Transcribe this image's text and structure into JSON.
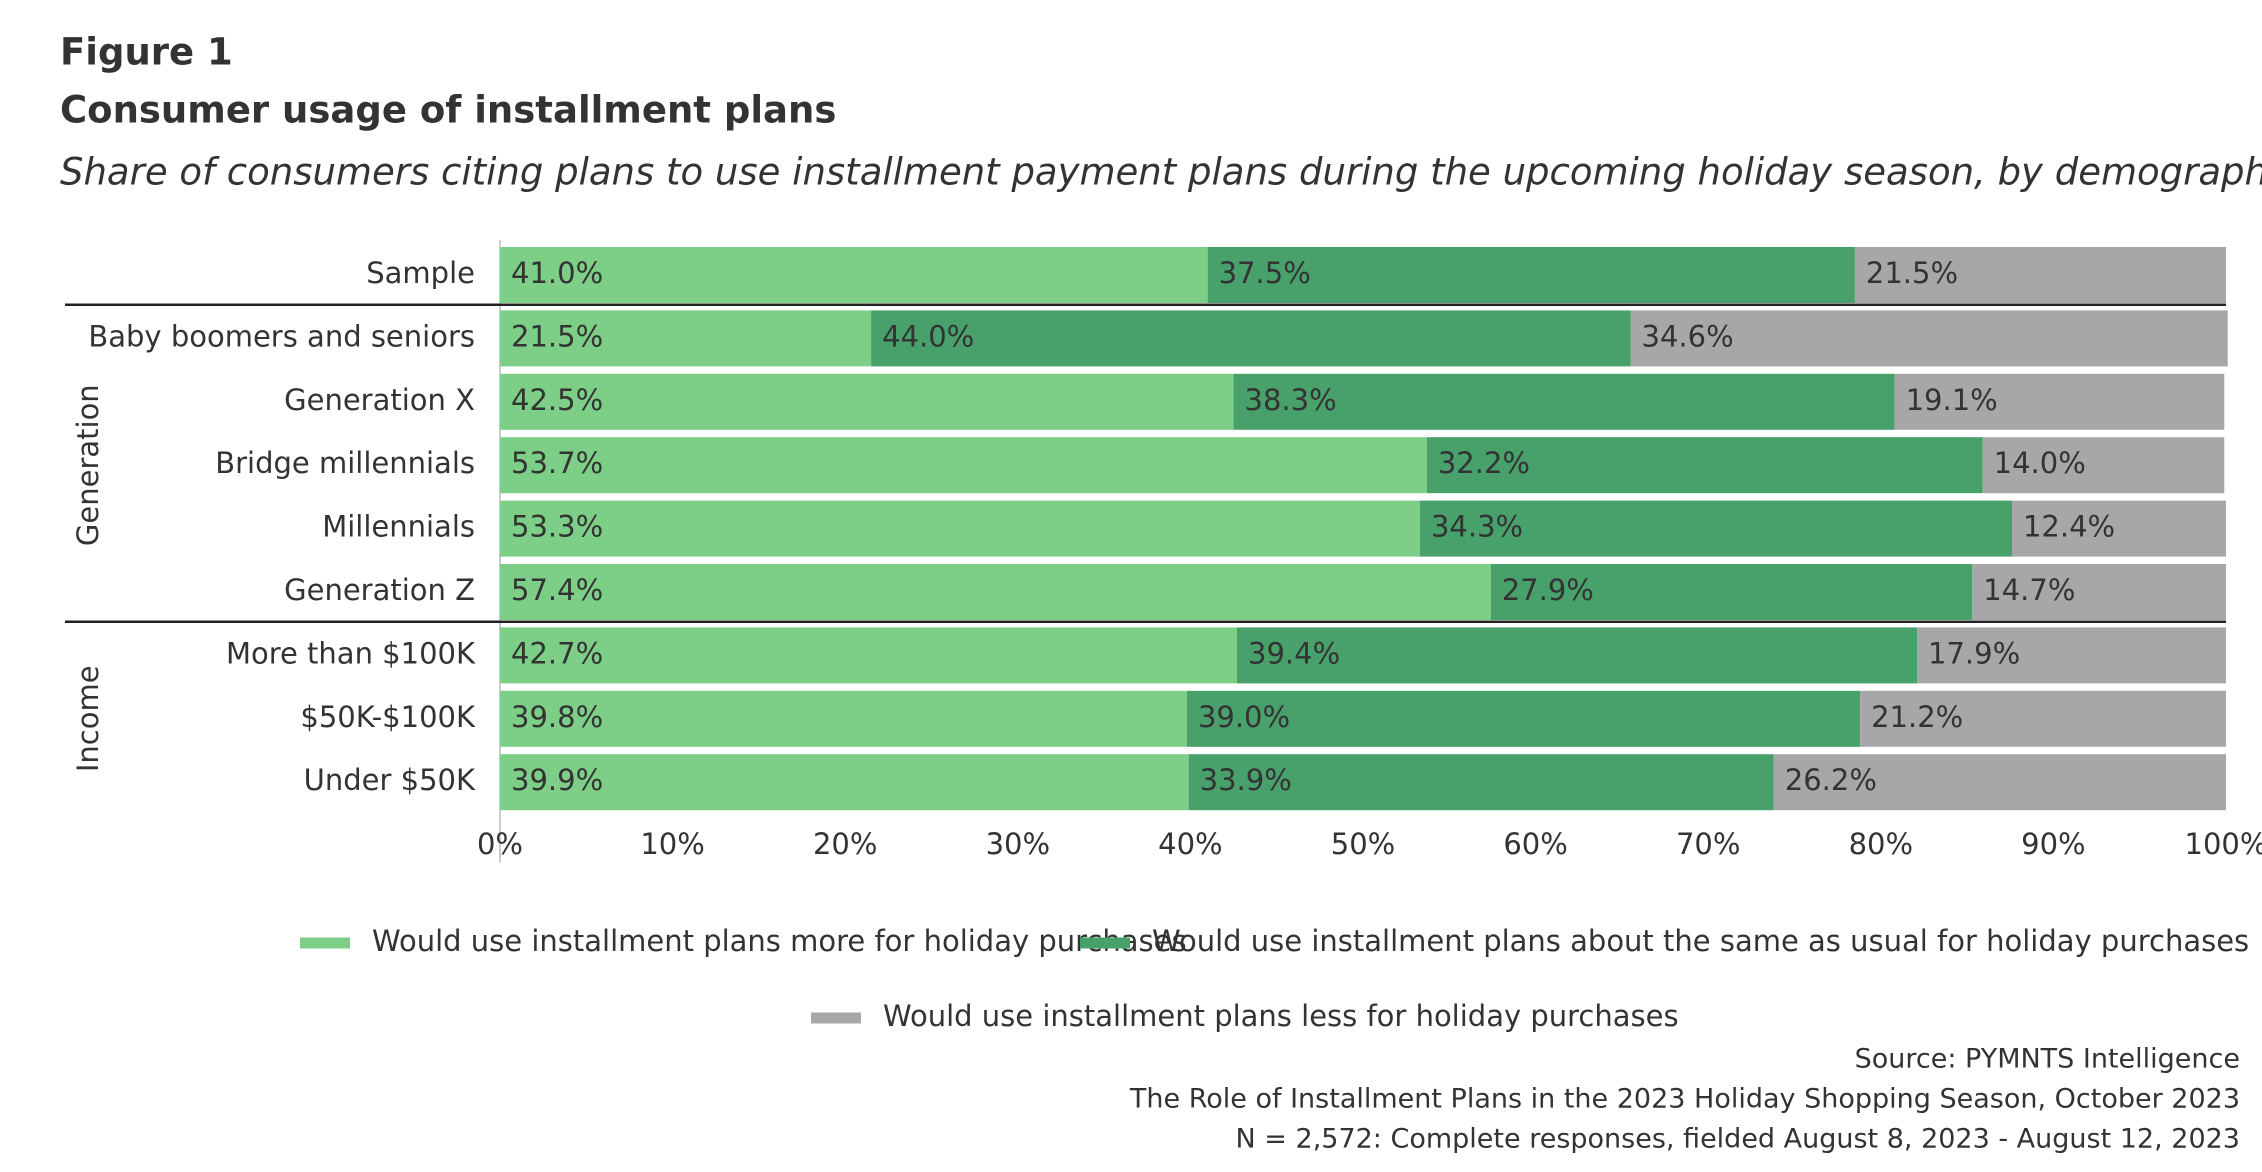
{
  "chart_data": {
    "type": "stacked-bar-horizontal",
    "figure_label": "Figure 1",
    "title": "Consumer usage of installment plans",
    "subtitle": "Share of consumers citing plans to use installment payment plans during the upcoming holiday season, by demographic",
    "categories": [
      "Sample",
      "Baby boomers and seniors",
      "Generation X",
      "Bridge millennials",
      "Millennials",
      "Generation Z",
      "More than $100K",
      "$50K-$100K",
      "Under $50K"
    ],
    "group_labels": [
      "Generation",
      "Income"
    ],
    "series": [
      {
        "name": "Would use installment plans more for holiday purchases",
        "color": "#7dcf87",
        "values": [
          41.0,
          21.5,
          42.5,
          53.7,
          53.3,
          57.4,
          42.7,
          39.8,
          39.9
        ],
        "value_labels": [
          "41.0%",
          "21.5%",
          "42.5%",
          "53.7%",
          "53.3%",
          "57.4%",
          "42.7%",
          "39.8%",
          "39.9%"
        ]
      },
      {
        "name": "Would use installment plans about the same as usual for holiday purchases",
        "color": "#48a06b",
        "values": [
          37.5,
          44.0,
          38.3,
          32.2,
          34.3,
          27.9,
          39.4,
          39.0,
          33.9
        ],
        "value_labels": [
          "37.5%",
          "44.0%",
          "38.3%",
          "32.2%",
          "34.3%",
          "27.9%",
          "39.4%",
          "39.0%",
          "33.9%"
        ]
      },
      {
        "name": "Would use installment plans less for holiday purchases",
        "color": "#a7a7aa",
        "values": [
          21.5,
          34.6,
          19.1,
          14.0,
          12.4,
          14.7,
          17.9,
          21.2,
          26.2
        ],
        "value_labels": [
          "21.5%",
          "34.6%",
          "19.1%",
          "14.0%",
          "12.4%",
          "14.7%",
          "17.9%",
          "21.2%",
          "26.2%"
        ]
      }
    ],
    "xlim": [
      0,
      100
    ],
    "xticks": [
      {
        "value": 0,
        "label": "0%"
      },
      {
        "value": 10,
        "label": "10%"
      },
      {
        "value": 20,
        "label": "20%"
      },
      {
        "value": 30,
        "label": "30%"
      },
      {
        "value": 40,
        "label": "40%"
      },
      {
        "value": 50,
        "label": "50%"
      },
      {
        "value": 60,
        "label": "60%"
      },
      {
        "value": 70,
        "label": "70%"
      },
      {
        "value": 80,
        "label": "80%"
      },
      {
        "value": 90,
        "label": "90%"
      },
      {
        "value": 100,
        "label": "100%"
      }
    ],
    "source": [
      "Source: PYMNTS Intelligence",
      "The Role of Installment Plans in the 2023 Holiday Shopping Season, October 2023",
      "N = 2,572: Complete responses, fielded August 8, 2023 - August 12, 2023"
    ]
  }
}
